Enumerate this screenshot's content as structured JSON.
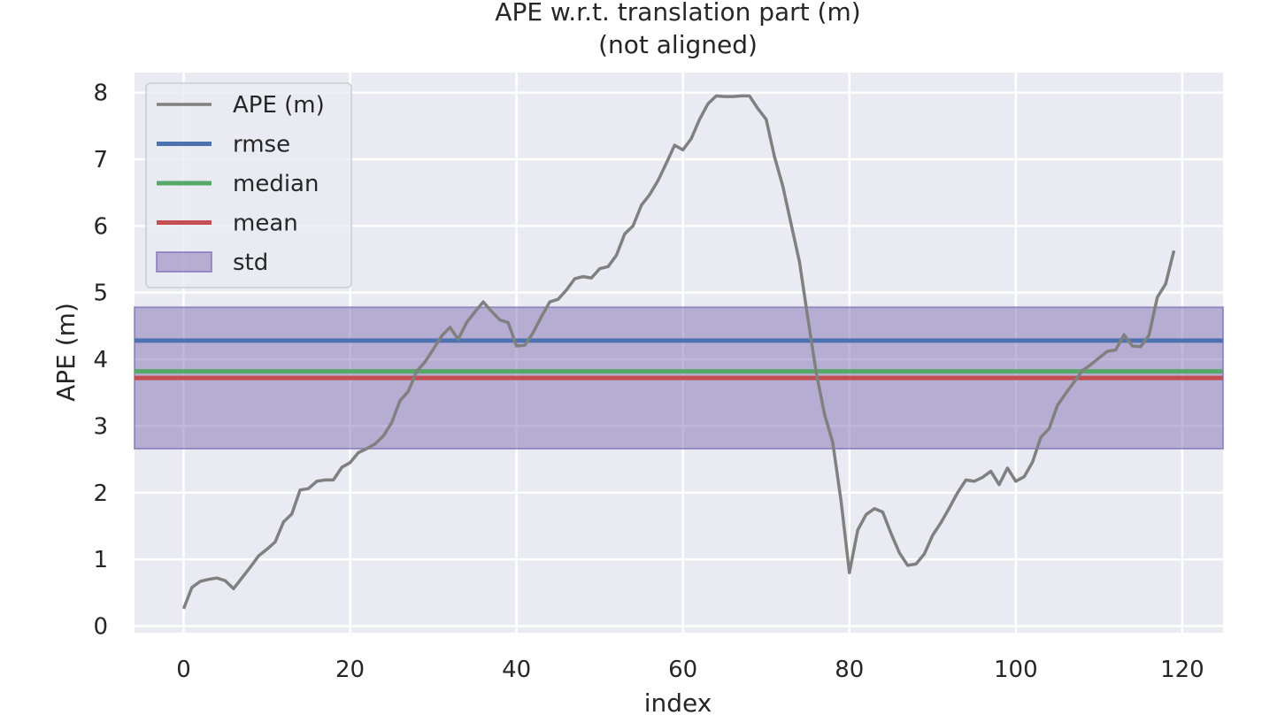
{
  "chart_data": {
    "type": "line",
    "title": "APE w.r.t. translation part (m)",
    "subtitle": "(not aligned)",
    "xlabel": "index",
    "ylabel": "APE (m)",
    "xlim": [
      -5.9,
      124.9
    ],
    "ylim": [
      -0.1,
      8.3
    ],
    "xticks": [
      0,
      20,
      40,
      60,
      80,
      100,
      120
    ],
    "yticks": [
      0,
      1,
      2,
      3,
      4,
      5,
      6,
      7,
      8
    ],
    "grid": true,
    "legend_position": "top-left",
    "colors": {
      "background": "#eaeaf2",
      "ape": "#808080",
      "rmse": "#4c72b0",
      "median": "#55a868",
      "mean": "#c44e52",
      "std": "#8172b2"
    },
    "stats": {
      "rmse": 4.28,
      "median": 3.82,
      "mean": 3.72,
      "std_low": 2.66,
      "std_high": 4.78
    },
    "legend": [
      "APE (m)",
      "rmse",
      "median",
      "mean",
      "std"
    ],
    "series": [
      {
        "name": "APE (m)",
        "x": [
          0,
          1,
          2,
          3,
          4,
          5,
          6,
          7,
          8,
          9,
          10,
          11,
          12,
          13,
          14,
          15,
          16,
          17,
          18,
          19,
          20,
          21,
          22,
          23,
          24,
          25,
          26,
          27,
          28,
          29,
          30,
          31,
          32,
          33,
          34,
          35,
          36,
          37,
          38,
          39,
          40,
          41,
          42,
          43,
          44,
          45,
          46,
          47,
          48,
          49,
          50,
          51,
          52,
          53,
          54,
          55,
          56,
          57,
          58,
          59,
          60,
          61,
          62,
          63,
          64,
          65,
          66,
          67,
          68,
          69,
          70,
          71,
          72,
          73,
          74,
          75,
          76,
          77,
          78,
          79,
          80,
          81,
          82,
          83,
          84,
          85,
          86,
          87,
          88,
          89,
          90,
          91,
          92,
          93,
          94,
          95,
          96,
          97,
          98,
          99,
          100,
          101,
          102,
          103,
          104,
          105,
          106,
          107,
          108,
          109,
          110,
          111,
          112,
          113,
          114,
          115,
          116,
          117,
          118,
          119
        ],
        "values": [
          0.26,
          0.58,
          0.67,
          0.7,
          0.72,
          0.68,
          0.56,
          0.72,
          0.88,
          1.05,
          1.15,
          1.26,
          1.56,
          1.68,
          2.04,
          2.06,
          2.17,
          2.19,
          2.19,
          2.38,
          2.45,
          2.6,
          2.66,
          2.73,
          2.85,
          3.05,
          3.38,
          3.52,
          3.82,
          3.96,
          4.15,
          4.35,
          4.48,
          4.3,
          4.55,
          4.71,
          4.86,
          4.72,
          4.59,
          4.55,
          4.2,
          4.21,
          4.4,
          4.64,
          4.86,
          4.9,
          5.04,
          5.21,
          5.24,
          5.22,
          5.36,
          5.39,
          5.56,
          5.88,
          6.0,
          6.31,
          6.47,
          6.68,
          6.94,
          7.21,
          7.14,
          7.31,
          7.6,
          7.83,
          7.95,
          7.94,
          7.94,
          7.95,
          7.95,
          7.76,
          7.6,
          7.04,
          6.6,
          6.03,
          5.46,
          4.62,
          3.81,
          3.18,
          2.75,
          1.87,
          0.8,
          1.44,
          1.67,
          1.76,
          1.71,
          1.39,
          1.1,
          0.91,
          0.93,
          1.08,
          1.36,
          1.55,
          1.77,
          2.0,
          2.19,
          2.17,
          2.23,
          2.32,
          2.12,
          2.37,
          2.17,
          2.24,
          2.46,
          2.83,
          2.96,
          3.31,
          3.49,
          3.66,
          3.83,
          3.92,
          4.02,
          4.12,
          4.14,
          4.37,
          4.2,
          4.19,
          4.36,
          4.93,
          5.13,
          5.63
        ]
      }
    ]
  }
}
